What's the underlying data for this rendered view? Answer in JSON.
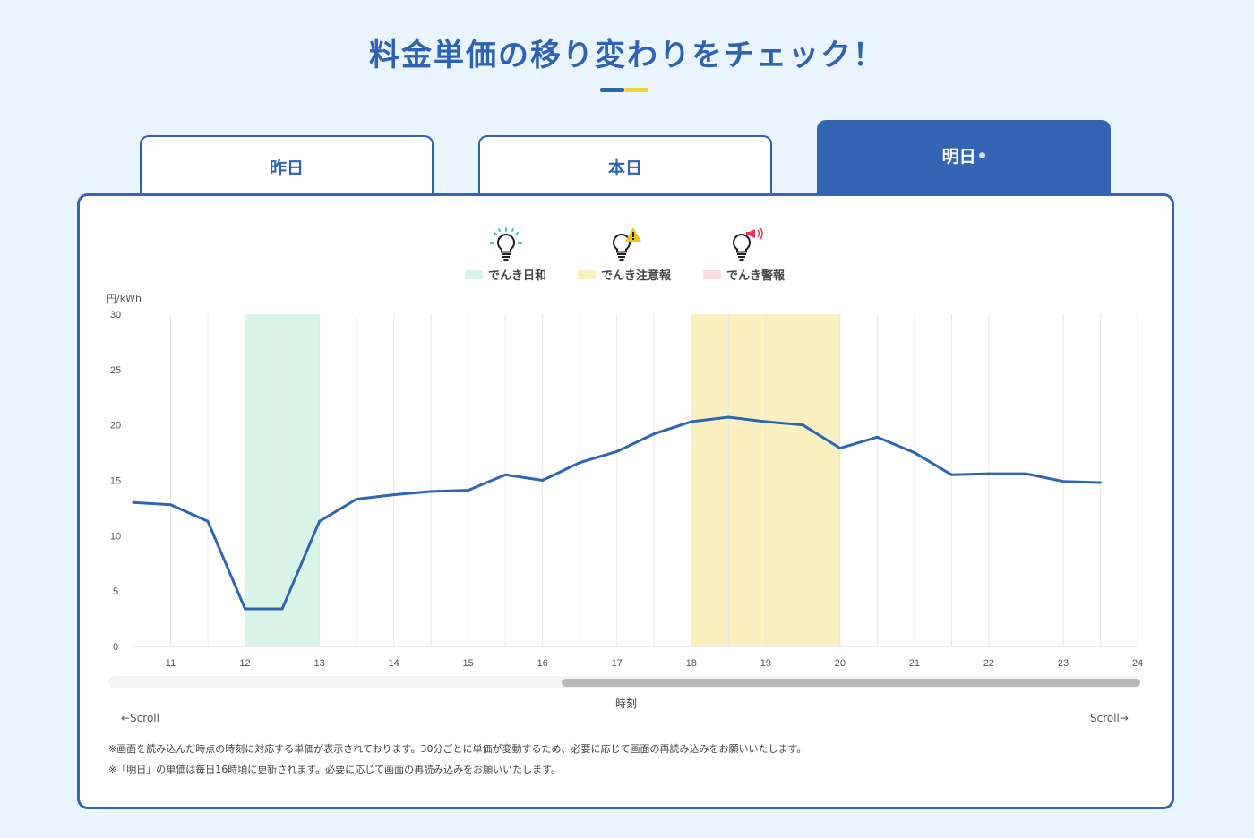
{
  "page": {
    "title": "料金単価の移り変わりをチェック！"
  },
  "tabs": [
    {
      "label": "昨日",
      "active": false
    },
    {
      "label": "本日",
      "active": false
    },
    {
      "label": "明日",
      "marker": "●",
      "active": true
    }
  ],
  "legend": [
    {
      "label": "でんき日和",
      "color": "#d9f5e7",
      "icon": "lightbulb-sparkle-icon"
    },
    {
      "label": "でんき注意報",
      "color": "#fbf0c0",
      "icon": "lightbulb-warning-icon"
    },
    {
      "label": "でんき警報",
      "color": "#fadde3",
      "icon": "lightbulb-megaphone-icon"
    }
  ],
  "colors": {
    "accent": "#3465b4",
    "line": "#2f66b3",
    "good_band": "#d9f5e7",
    "caution_band": "#fbf0c0",
    "alert_band": "#fadde3"
  },
  "chart_data": {
    "type": "line",
    "unit_label": "円/kWh",
    "xlabel": "時刻",
    "ylim": [
      0,
      30
    ],
    "yticks": [
      0,
      5,
      10,
      15,
      20,
      25,
      30
    ],
    "xticks": [
      11,
      12,
      13,
      14,
      15,
      16,
      17,
      18,
      19,
      20,
      21,
      22,
      23,
      24
    ],
    "x": [
      10.5,
      11,
      11.5,
      12,
      12.5,
      13,
      13.5,
      14,
      14.5,
      15,
      15.5,
      16,
      16.5,
      17,
      17.5,
      18,
      18.5,
      19,
      19.5,
      20,
      20.5,
      21,
      21.5,
      22,
      22.5,
      23,
      23.5
    ],
    "values": [
      13.0,
      12.8,
      11.3,
      3.4,
      3.4,
      11.3,
      13.3,
      13.7,
      14.0,
      14.1,
      15.5,
      15.0,
      16.6,
      17.6,
      19.2,
      20.3,
      20.7,
      20.3,
      20.0,
      17.9,
      18.9,
      17.5,
      15.5,
      15.6,
      15.6,
      14.9,
      14.8
    ],
    "bands": [
      {
        "type": "good",
        "from": 12,
        "to": 13
      },
      {
        "type": "caution",
        "from": 18,
        "to": 20
      }
    ],
    "grid": true
  },
  "scroll": {
    "left_label": "←Scroll",
    "right_label": "Scroll→",
    "position": 0.44
  },
  "notes": [
    "※画面を読み込んだ時点の時刻に対応する単価が表示されております。30分ごとに単価が変動するため、必要に応じて画面の再読み込みをお願いいたします。",
    "※「明日」の単価は毎日16時頃に更新されます。必要に応じて画面の再読み込みをお願いいたします。"
  ]
}
